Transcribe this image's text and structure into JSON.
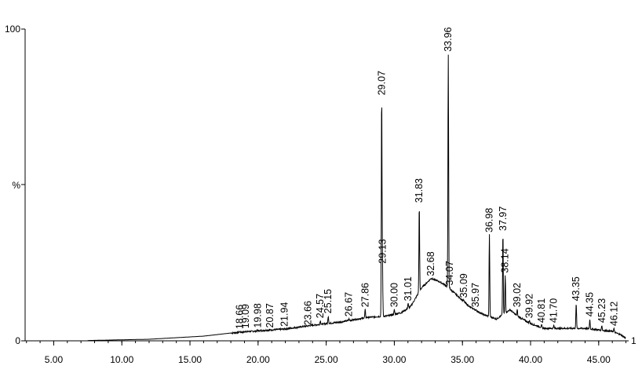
{
  "chart_data": {
    "type": "line",
    "title": "",
    "xlabel": "",
    "ylabel": "%",
    "xlim": [
      2.9,
      47.2
    ],
    "ylim": [
      0,
      100
    ],
    "x_ticks": [
      "5.00",
      "10.00",
      "15.00",
      "20.00",
      "25.00",
      "30.00",
      "35.00",
      "40.00",
      "45.00"
    ],
    "y_ticks": [
      "100",
      "%",
      "0"
    ],
    "corner_label": "1",
    "peaks": [
      {
        "x": 18.66,
        "label": "18.66",
        "y": 3
      },
      {
        "x": 19.09,
        "label": "19.09",
        "y": 3.2
      },
      {
        "x": 19.98,
        "label": "19.98",
        "y": 3.4
      },
      {
        "x": 20.87,
        "label": "20.87",
        "y": 3.4
      },
      {
        "x": 21.94,
        "label": "21.94",
        "y": 3.8
      },
      {
        "x": 23.66,
        "label": "23.66",
        "y": 4.2
      },
      {
        "x": 24.57,
        "label": "24.57",
        "y": 6.5
      },
      {
        "x": 25.15,
        "label": "25.15",
        "y": 8
      },
      {
        "x": 26.67,
        "label": "26.67",
        "y": 7
      },
      {
        "x": 27.86,
        "label": "27.86",
        "y": 10
      },
      {
        "x": 29.07,
        "label": "29.07",
        "y": 78
      },
      {
        "x": 29.13,
        "label": "29.13",
        "y": 24
      },
      {
        "x": 30.0,
        "label": "30.00",
        "y": 10
      },
      {
        "x": 31.01,
        "label": "31.01",
        "y": 12
      },
      {
        "x": 31.83,
        "label": "31.83",
        "y": 43.5
      },
      {
        "x": 32.68,
        "label": "32.68",
        "y": 20
      },
      {
        "x": 33.96,
        "label": "33.96",
        "y": 92
      },
      {
        "x": 34.07,
        "label": "34.07",
        "y": 17
      },
      {
        "x": 35.09,
        "label": "35.09",
        "y": 13
      },
      {
        "x": 35.97,
        "label": "35.97",
        "y": 10
      },
      {
        "x": 36.98,
        "label": "36.98",
        "y": 34
      },
      {
        "x": 37.97,
        "label": "37.97",
        "y": 34.5
      },
      {
        "x": 38.14,
        "label": "38.14",
        "y": 21
      },
      {
        "x": 39.02,
        "label": "39.02",
        "y": 10
      },
      {
        "x": 39.92,
        "label": "39.92",
        "y": 6.5
      },
      {
        "x": 40.81,
        "label": "40.81",
        "y": 5
      },
      {
        "x": 41.7,
        "label": "41.70",
        "y": 5
      },
      {
        "x": 43.35,
        "label": "43.35",
        "y": 12
      },
      {
        "x": 44.35,
        "label": "44.35",
        "y": 7
      },
      {
        "x": 45.23,
        "label": "45.23",
        "y": 5
      },
      {
        "x": 46.12,
        "label": "46.12",
        "y": 4
      }
    ],
    "baseline": [
      [
        7.5,
        0.1
      ],
      [
        12,
        0.5
      ],
      [
        16,
        1.5
      ],
      [
        18,
        2.5
      ],
      [
        20,
        3.2
      ],
      [
        22,
        3.8
      ],
      [
        24,
        5
      ],
      [
        26,
        6
      ],
      [
        28,
        7.5
      ],
      [
        29.5,
        8
      ],
      [
        30.5,
        9
      ],
      [
        31.2,
        11
      ],
      [
        31.6,
        14
      ],
      [
        32,
        17
      ],
      [
        32.7,
        20
      ],
      [
        33.3,
        19
      ],
      [
        33.7,
        18
      ],
      [
        34.5,
        15
      ],
      [
        35.5,
        11
      ],
      [
        36.5,
        8.5
      ],
      [
        37.5,
        7
      ],
      [
        38.5,
        10
      ],
      [
        39,
        8
      ],
      [
        40,
        5.5
      ],
      [
        41,
        4
      ],
      [
        42,
        4
      ],
      [
        43,
        4
      ],
      [
        44,
        4
      ],
      [
        45,
        3.5
      ],
      [
        46,
        3
      ],
      [
        46.6,
        2
      ],
      [
        47.0,
        0.8
      ]
    ]
  }
}
